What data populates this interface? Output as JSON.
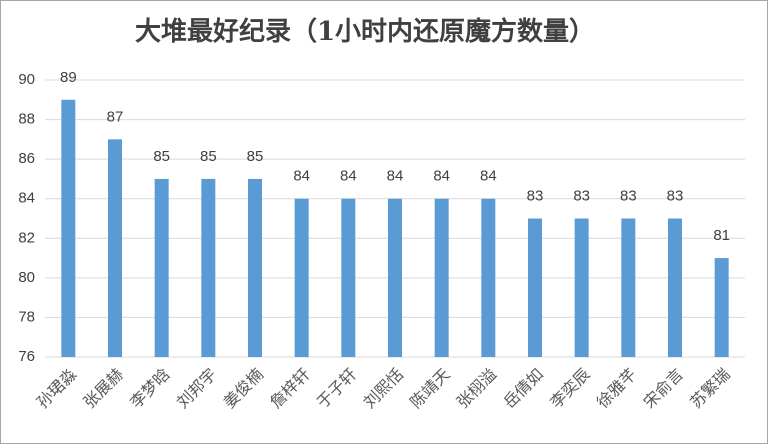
{
  "chart_data": {
    "type": "bar",
    "title": "大堆最好纪录（1小时内还原魔方数量）",
    "categories": [
      "孙珺淼",
      "张展赫",
      "李梦晗",
      "刘邦宇",
      "姜俊楠",
      "詹梓轩",
      "于子轩",
      "刘熙恬",
      "陈靖天",
      "张栩溢",
      "岳倩如",
      "李奕辰",
      "徐雅芊",
      "宋俞言",
      "苏繁瑞"
    ],
    "values": [
      89,
      87,
      85,
      85,
      85,
      84,
      84,
      84,
      84,
      84,
      83,
      83,
      83,
      83,
      81
    ],
    "color": "#5b9bd5",
    "ylim": [
      76,
      90
    ],
    "yticks": [
      76,
      78,
      80,
      82,
      84,
      86,
      88,
      90
    ],
    "grid": true
  }
}
